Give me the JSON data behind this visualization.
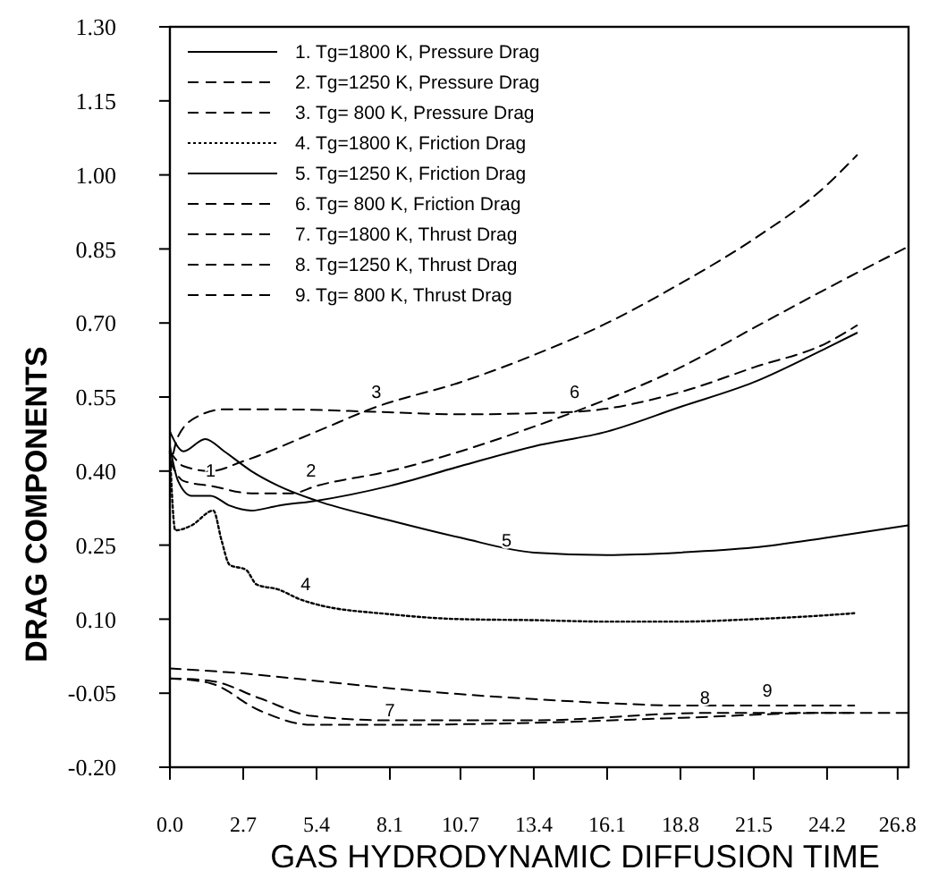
{
  "chart_data": {
    "type": "line",
    "xlabel": "GAS HYDRODYNAMIC DIFFUSION TIME",
    "ylabel": "DRAG COMPONENTS",
    "xlim": [
      0,
      27.2
    ],
    "ylim": [
      -0.2,
      1.3
    ],
    "xticks": [
      {
        "value": 0,
        "label": "0.0"
      },
      2.7,
      5.4,
      8.1,
      10.7,
      13.4,
      16.1,
      18.8,
      21.5,
      24.2,
      26.8
    ],
    "yticks": [
      {
        "value": 1.3,
        "label": "1.30"
      },
      1.15,
      {
        "value": 1.0,
        "label": "1.00"
      },
      0.85,
      {
        "value": 0.7,
        "label": "0.70"
      },
      0.55,
      {
        "value": 0.4,
        "label": "0.40"
      },
      0.25,
      {
        "value": 0.1,
        "label": "0.10"
      },
      -0.05,
      {
        "value": -0.2,
        "label": "-0.20"
      }
    ],
    "grid": false,
    "legend": "top left",
    "series": [
      {
        "name": "1. Tg=1800 K, Pressure Drag",
        "color": "#000000",
        "line_style": "solid",
        "x": [
          0,
          0.3,
          0.8,
          1.5,
          2.2,
          3.0,
          4.0,
          5.4,
          8.1,
          10.7,
          13.4,
          16.1,
          18.8,
          21.5,
          24.2,
          25.3
        ],
        "values": [
          0.45,
          0.38,
          0.35,
          0.35,
          0.33,
          0.32,
          0.33,
          0.34,
          0.37,
          0.41,
          0.45,
          0.48,
          0.53,
          0.58,
          0.65,
          0.68
        ]
      },
      {
        "name": "2. Tg=1250 K, Pressure Drag",
        "color": "#000000",
        "line_style": "dashed",
        "x": [
          0,
          0.5,
          1.5,
          3.0,
          4.5,
          5.4,
          8.1,
          10.7,
          13.4,
          14.9,
          18.8,
          21.5,
          24.2,
          27.2
        ],
        "values": [
          0.42,
          0.38,
          0.37,
          0.355,
          0.355,
          0.37,
          0.4,
          0.44,
          0.49,
          0.52,
          0.61,
          0.69,
          0.77,
          0.855
        ]
      },
      {
        "name": "3. Tg= 800 K, Pressure Drag",
        "color": "#000000",
        "line_style": "dashed",
        "x": [
          0,
          0.5,
          1.5,
          2.7,
          5.4,
          7.6,
          10.7,
          13.4,
          16.1,
          18.8,
          21.5,
          24.2,
          25.3
        ],
        "values": [
          0.44,
          0.41,
          0.4,
          0.42,
          0.48,
          0.53,
          0.58,
          0.635,
          0.7,
          0.78,
          0.87,
          0.98,
          1.04
        ]
      },
      {
        "name": "4. Tg=1800 K, Friction Drag",
        "color": "#000000",
        "line_style": "dotted",
        "x": [
          0,
          0.2,
          0.8,
          1.6,
          1.9,
          2.2,
          2.8,
          3.2,
          4.0,
          4.8,
          5.4,
          8.1,
          10.7,
          13.4,
          16.1,
          18.8,
          21.5,
          24.2,
          25.2
        ],
        "values": [
          0.44,
          0.28,
          0.29,
          0.32,
          0.26,
          0.21,
          0.2,
          0.17,
          0.16,
          0.14,
          0.13,
          0.11,
          0.1,
          0.098,
          0.095,
          0.095,
          0.1,
          0.108,
          0.112
        ]
      },
      {
        "name": "5. Tg=1250 K, Friction Drag",
        "color": "#000000",
        "line_style": "solid",
        "x": [
          0,
          0.5,
          1.3,
          2.0,
          3.0,
          4.0,
          5.4,
          8.1,
          10.7,
          13.4,
          16.1,
          18.8,
          21.5,
          24.2,
          27.2
        ],
        "values": [
          0.48,
          0.44,
          0.465,
          0.44,
          0.4,
          0.37,
          0.34,
          0.3,
          0.265,
          0.235,
          0.23,
          0.235,
          0.245,
          0.265,
          0.29
        ]
      },
      {
        "name": "6. Tg= 800 K, Friction Drag",
        "color": "#000000",
        "line_style": "dashed",
        "x": [
          0,
          0.3,
          1.0,
          2.0,
          4.0,
          7.6,
          10.7,
          14.9,
          18.8,
          21.5,
          24.2,
          25.3
        ],
        "values": [
          0.4,
          0.47,
          0.51,
          0.525,
          0.525,
          0.52,
          0.515,
          0.52,
          0.56,
          0.61,
          0.66,
          0.695
        ]
      },
      {
        "name": "7. Tg=1800 K, Thrust Drag",
        "color": "#000000",
        "line_style": "dashed",
        "x": [
          0,
          1.5,
          3.3,
          5.2,
          8.1,
          13.4,
          18.8,
          24.2,
          25.3
        ],
        "values": [
          -0.02,
          -0.03,
          -0.085,
          -0.114,
          -0.114,
          -0.11,
          -0.1,
          -0.09,
          -0.09
        ]
      },
      {
        "name": "8. Tg=1250 K, Thrust Drag",
        "color": "#000000",
        "line_style": "dashed",
        "x": [
          0,
          1.5,
          3.3,
          5.2,
          8.1,
          13.4,
          19.7,
          27.2
        ],
        "values": [
          -0.02,
          -0.025,
          -0.06,
          -0.096,
          -0.105,
          -0.105,
          -0.09,
          -0.09
        ]
      },
      {
        "name": "9. Tg= 800 K, Thrust Drag",
        "color": "#000000",
        "line_style": "dashed",
        "x": [
          0,
          2.7,
          5.4,
          8.1,
          10.7,
          13.4,
          16.1,
          18.8,
          21.5,
          25.2
        ],
        "values": [
          0.0,
          -0.01,
          -0.025,
          -0.04,
          -0.052,
          -0.062,
          -0.07,
          -0.075,
          -0.075,
          -0.075
        ]
      }
    ],
    "annotations": [
      {
        "text": "1",
        "x": 1.5,
        "y": 0.37
      },
      {
        "text": "2",
        "x": 5.2,
        "y": 0.37
      },
      {
        "text": "3",
        "x": 7.6,
        "y": 0.53
      },
      {
        "text": "4",
        "x": 5.0,
        "y": 0.14
      },
      {
        "text": "5",
        "x": 12.4,
        "y": 0.23
      },
      {
        "text": "6",
        "x": 14.9,
        "y": 0.53
      },
      {
        "text": "7",
        "x": 8.1,
        "y": -0.114
      },
      {
        "text": "8",
        "x": 19.7,
        "y": -0.09
      },
      {
        "text": "9",
        "x": 22.0,
        "y": -0.075
      }
    ]
  }
}
